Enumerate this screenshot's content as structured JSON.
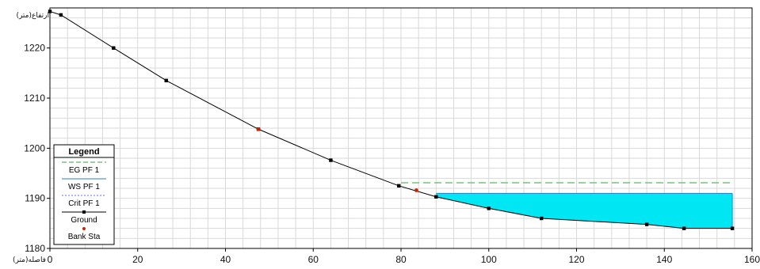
{
  "chart_data": {
    "type": "line",
    "title": "",
    "xlabel": "فاصله(متر)",
    "ylabel": "ارتفاع(متر)",
    "xlim": [
      0,
      160
    ],
    "ylim": [
      1180,
      1228
    ],
    "x_ticks": [
      0,
      20,
      40,
      60,
      80,
      100,
      120,
      140,
      160
    ],
    "y_ticks": [
      1180,
      1190,
      1200,
      1210,
      1220
    ],
    "x_tick_labels": [
      "0",
      "20",
      "40",
      "60",
      "80",
      "100",
      "120",
      "140",
      "160"
    ],
    "y_tick_labels": [
      "1180",
      "1190",
      "1200",
      "1210",
      "1220"
    ],
    "grid": true,
    "legend_position": "left",
    "legend_title": "Legend",
    "colors": {
      "ground": "#000000",
      "water_fill": "#00e6f2",
      "eg": "#7fbf7f",
      "crit": "#8a8aff",
      "bank": "#cc2200",
      "grid": "#d9d9d9"
    },
    "series": [
      {
        "name": "EG PF 1",
        "kind": "dashed-line",
        "x": [
          80,
          155.5
        ],
        "y": [
          1193.1,
          1193.1
        ]
      },
      {
        "name": "WS PF 1",
        "kind": "water-surface",
        "x": [
          88,
          155.5
        ],
        "y": [
          1191,
          1191
        ]
      },
      {
        "name": "Crit PF 1",
        "kind": "dotted-line",
        "x": [],
        "y": []
      },
      {
        "name": "Ground",
        "kind": "line-markers",
        "x": [
          0,
          2.5,
          14.5,
          26.5,
          47.5,
          64,
          79.5,
          88,
          100,
          112,
          136,
          144.5,
          155.5
        ],
        "y": [
          1227.3,
          1226.6,
          1220.0,
          1213.5,
          1203.8,
          1197.6,
          1192.5,
          1190.3,
          1188.0,
          1186.0,
          1184.8,
          1184.0,
          1184.0
        ]
      },
      {
        "name": "Bank Sta",
        "kind": "markers",
        "x": [
          47.5,
          83.5
        ],
        "y": [
          1203.8,
          1191.6
        ]
      }
    ]
  }
}
